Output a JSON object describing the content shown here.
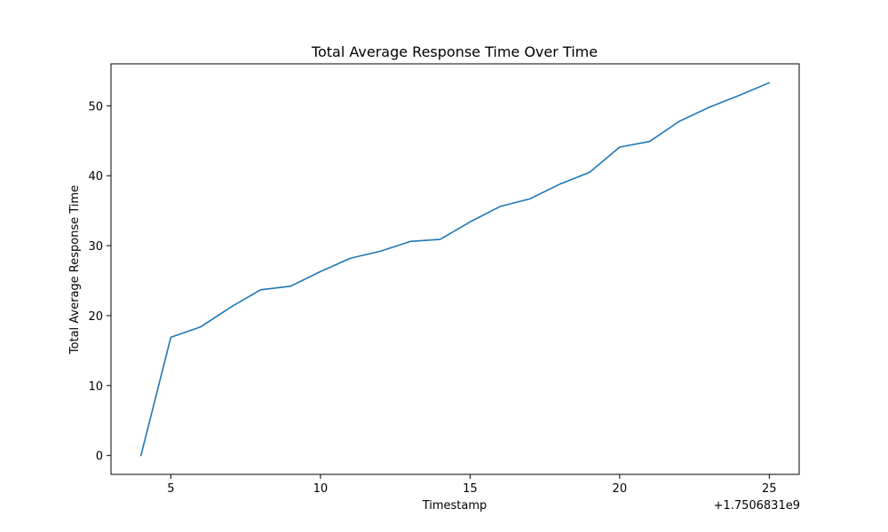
{
  "chart_data": {
    "type": "line",
    "title": "Total Average Response Time Over Time",
    "xlabel": "Timestamp",
    "ylabel": "Total Average Response Time",
    "x_offset_label": "+1.7506831e9",
    "xlim": [
      3,
      26
    ],
    "ylim": [
      -2.7,
      56
    ],
    "xticks": [
      5,
      10,
      15,
      20,
      25
    ],
    "xtick_labels": [
      "5",
      "10",
      "15",
      "20",
      "25"
    ],
    "yticks": [
      0,
      10,
      20,
      30,
      40,
      50
    ],
    "ytick_labels": [
      "0",
      "10",
      "20",
      "30",
      "40",
      "50"
    ],
    "grid": false,
    "line_color": "#1f77b4",
    "series": [
      {
        "x": [
          4,
          5,
          6,
          7,
          8,
          9,
          10,
          11,
          12,
          13,
          14,
          15,
          16,
          17,
          18,
          19,
          20,
          21,
          22,
          23,
          24,
          25
        ],
        "values": [
          0.0,
          16.9,
          18.4,
          21.2,
          23.7,
          24.2,
          26.3,
          28.2,
          29.2,
          30.6,
          30.9,
          33.4,
          35.6,
          36.7,
          38.8,
          40.5,
          44.1,
          44.9,
          47.8,
          49.8,
          51.5,
          53.3
        ]
      }
    ]
  }
}
